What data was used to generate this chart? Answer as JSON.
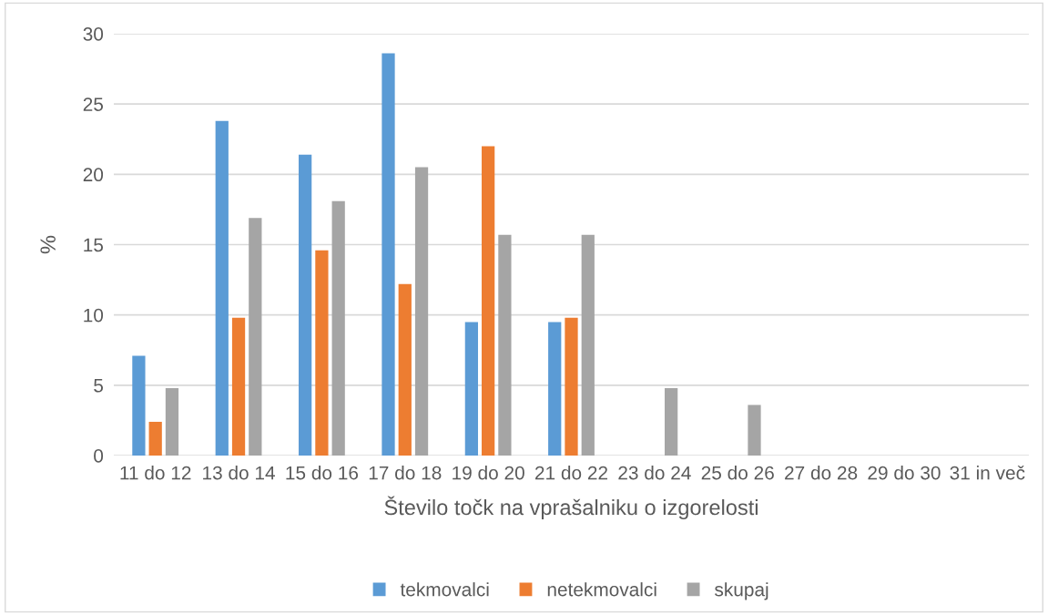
{
  "chart_data": {
    "type": "bar",
    "xlabel": "Število točk na vprašalniku o izgorelosti",
    "ylabel": "%",
    "categories": [
      "11 do 12",
      "13 do 14",
      "15 do 16",
      "17 do 18",
      "19 do 20",
      "21 do 22",
      "23 do 24",
      "25 do 26",
      "27 do 28",
      "29 do 30",
      "31 in več"
    ],
    "series": [
      {
        "name": "tekmovalci",
        "color": "#5b9bd5",
        "values": [
          7.1,
          23.8,
          21.4,
          28.6,
          9.5,
          9.5,
          0,
          0,
          0,
          0,
          0
        ]
      },
      {
        "name": "netekmovalci",
        "color": "#ed7d31",
        "values": [
          2.4,
          9.8,
          14.6,
          12.2,
          22.0,
          9.8,
          0,
          0,
          0,
          0,
          0
        ]
      },
      {
        "name": "skupaj",
        "color": "#a5a5a5",
        "values": [
          4.8,
          16.9,
          18.1,
          20.5,
          15.7,
          15.7,
          4.8,
          3.6,
          0,
          0,
          0
        ]
      }
    ],
    "ylim": [
      0,
      30
    ],
    "yticks": [
      0,
      5,
      10,
      15,
      20,
      25,
      30
    ],
    "grid": "y",
    "legend": "bottom"
  }
}
